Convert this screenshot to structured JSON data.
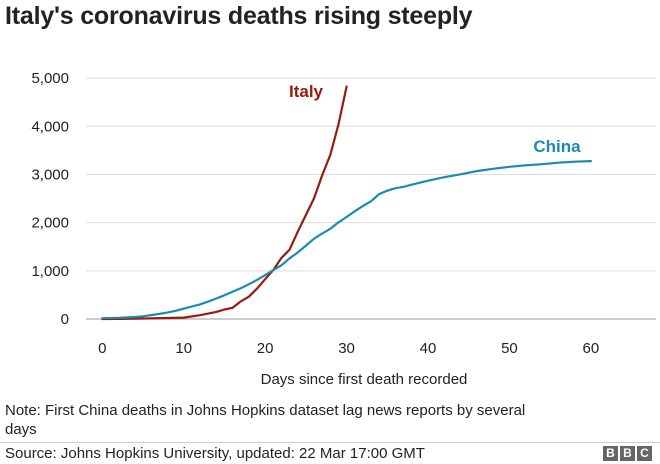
{
  "title": "Italy's coronavirus deaths rising steeply",
  "note": "Note: First China deaths in Johns Hopkins dataset lag news reports by several days",
  "source": "Source: Johns Hopkins University, updated: 22 Mar 17:00 GMT",
  "logo": {
    "letters": [
      "B",
      "B",
      "C"
    ]
  },
  "chart_data": {
    "type": "line",
    "title": "Italy's coronavirus deaths rising steeply",
    "xlabel": "Days since first death recorded",
    "ylabel": "",
    "xlim": [
      -2,
      68
    ],
    "ylim": [
      0,
      5500
    ],
    "x_ticks": [
      0,
      10,
      20,
      30,
      40,
      50,
      60
    ],
    "x_tick_labels": [
      "0",
      "10",
      "20",
      "30",
      "40",
      "50",
      "60"
    ],
    "y_ticks": [
      0,
      1000,
      2000,
      3000,
      4000,
      5000
    ],
    "y_tick_labels": [
      "0",
      "1,000",
      "2,000",
      "3,000",
      "4,000",
      "5,000"
    ],
    "grid": "horizontal",
    "legend": "direct labels",
    "series": [
      {
        "name": "Italy",
        "color": "#991a0e",
        "x": [
          0,
          2,
          4,
          6,
          8,
          10,
          12,
          14,
          15,
          16,
          17,
          18,
          19,
          20,
          21,
          22,
          23,
          24,
          25,
          26,
          27,
          28,
          29,
          30
        ],
        "y": [
          1,
          3,
          7,
          12,
          21,
          29,
          79,
          148,
          197,
          233,
          366,
          463,
          631,
          827,
          1016,
          1266,
          1441,
          1809,
          2158,
          2503,
          2978,
          3405,
          4032,
          4825
        ]
      },
      {
        "name": "China",
        "color": "#1b8bb0",
        "x": [
          0,
          2,
          4,
          5,
          6,
          7,
          8,
          9,
          10,
          11,
          12,
          13,
          14,
          15,
          16,
          17,
          18,
          19,
          20,
          21,
          22,
          23,
          24,
          25,
          26,
          27,
          28,
          29,
          30,
          31,
          32,
          33,
          34,
          35,
          36,
          37,
          38,
          40,
          42,
          44,
          46,
          48,
          50,
          52,
          54,
          56,
          58,
          60
        ],
        "y": [
          17,
          25,
          41,
          56,
          80,
          106,
          132,
          170,
          213,
          259,
          304,
          362,
          426,
          492,
          564,
          637,
          723,
          812,
          909,
          1017,
          1114,
          1260,
          1381,
          1524,
          1666,
          1772,
          1873,
          2004,
          2118,
          2236,
          2345,
          2442,
          2592,
          2663,
          2715,
          2744,
          2788,
          2870,
          2943,
          3003,
          3070,
          3118,
          3158,
          3190,
          3213,
          3245,
          3265,
          3277
        ]
      }
    ]
  }
}
